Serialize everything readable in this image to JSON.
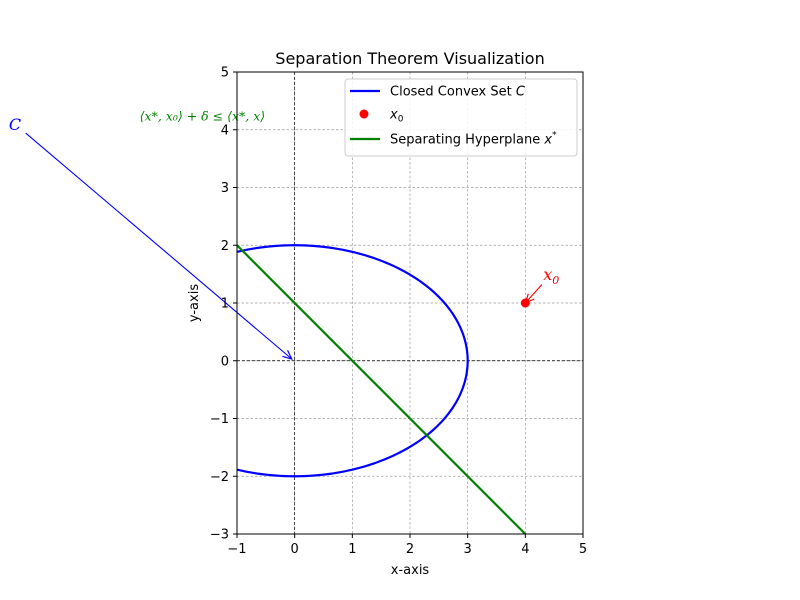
{
  "chart_data": {
    "type": "line",
    "title": "Separation Theorem Visualization",
    "xlabel": "x-axis",
    "ylabel": "y-axis",
    "xlim": [
      -1,
      5
    ],
    "ylim": [
      -3,
      5
    ],
    "x_ticks": [
      -1,
      0,
      1,
      2,
      3,
      4,
      5
    ],
    "y_ticks": [
      -3,
      -2,
      -1,
      0,
      1,
      2,
      3,
      4,
      5
    ],
    "x_tick_labels": [
      "−1",
      "0",
      "1",
      "2",
      "3",
      "4",
      "5"
    ],
    "y_tick_labels": [
      "−3",
      "−2",
      "−1",
      "0",
      "1",
      "2",
      "3",
      "4",
      "5"
    ],
    "grid": true,
    "legend_position": "top-right",
    "series": [
      {
        "name": "Closed Convex Set C",
        "kind": "ellipse",
        "center": [
          0,
          0
        ],
        "semi_axes": [
          3,
          2
        ],
        "color": "#0000ff"
      },
      {
        "name": "x0",
        "kind": "point",
        "points": [
          [
            4,
            1
          ]
        ],
        "color": "#ff0000"
      },
      {
        "name": "Separating Hyperplane x*",
        "kind": "line",
        "x": [
          -1,
          4
        ],
        "y": [
          2,
          -3
        ],
        "color": "#008000"
      }
    ],
    "annotations": [
      {
        "text_main": "C",
        "text_sub": "",
        "color": "#0000ff",
        "point": [
          -0.05,
          0.03
        ],
        "text_at": [
          -4.85,
          4.1
        ]
      },
      {
        "text_main": "x",
        "text_sub": "0",
        "color": "#ff0000",
        "point": [
          4.0,
          1.0
        ],
        "text_at": [
          4.45,
          1.5
        ]
      },
      {
        "text_main": "⟨x*, x₀⟩ + δ ≤ ⟨x*, x⟩",
        "text_sub": "",
        "color": "#008000",
        "point": null,
        "text_at": [
          -3.0,
          4.25
        ]
      }
    ]
  }
}
